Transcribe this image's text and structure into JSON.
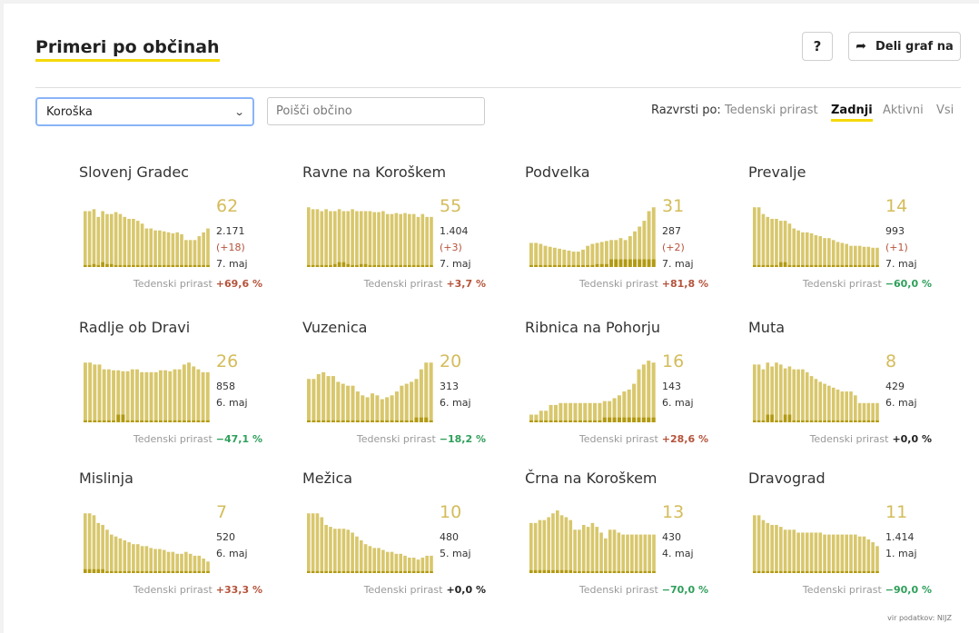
{
  "header": {
    "title": "Primeri po občinah",
    "help_label": "?",
    "share_label": "Deli graf na",
    "share_icon": "share-arrow-icon"
  },
  "filters": {
    "region": "Koroška",
    "search_placeholder": "Poišči občino"
  },
  "sort": {
    "label": "Razvrsti po:",
    "options": [
      "Tedenski prirast",
      "Zadnji",
      "Aktivni",
      "Vsi"
    ],
    "active": "Zadnji"
  },
  "colors": {
    "bar": "#d8c76c",
    "bar_dark": "#b29a12",
    "accent": "#f5d90a",
    "up": "#b5533b",
    "down": "#2e9f5a",
    "zero": "#222222"
  },
  "weekly_label": "Tedenski prirast",
  "source": "vir podatkov: NIJZ",
  "chart_data": [
    {
      "type": "bar",
      "name": "Slovenj Gradec",
      "active": "62",
      "total": "2.171",
      "diff": "(+18)",
      "date": "7. maj",
      "weekly": "+69,6 %",
      "trend": "up",
      "values": [
        58,
        58,
        60,
        52,
        58,
        55,
        55,
        57,
        55,
        52,
        50,
        50,
        48,
        45,
        40,
        40,
        38,
        38,
        37,
        36,
        35,
        36,
        34,
        28,
        28,
        28,
        32,
        36,
        40
      ],
      "dark": [
        2,
        2,
        3,
        2,
        5,
        3,
        3,
        2,
        2,
        2,
        2,
        2,
        2,
        2,
        2,
        2,
        2,
        2,
        2,
        2,
        2,
        2,
        2,
        2,
        2,
        2,
        2,
        2,
        2
      ]
    },
    {
      "type": "bar",
      "name": "Ravne na Koroškem",
      "active": "55",
      "total": "1.404",
      "diff": "(+3)",
      "date": "7. maj",
      "weekly": "+3,7 %",
      "trend": "up",
      "values": [
        62,
        60,
        60,
        58,
        60,
        58,
        58,
        60,
        58,
        58,
        60,
        58,
        58,
        58,
        58,
        57,
        57,
        58,
        55,
        55,
        56,
        55,
        56,
        55,
        55,
        52,
        55,
        52,
        52
      ],
      "dark": [
        2,
        2,
        2,
        2,
        2,
        2,
        3,
        5,
        5,
        3,
        2,
        2,
        3,
        3,
        2,
        2,
        2,
        2,
        2,
        2,
        2,
        2,
        2,
        2,
        2,
        2,
        2,
        2,
        2
      ]
    },
    {
      "type": "bar",
      "name": "Podvelka",
      "active": "31",
      "total": "287",
      "diff": "(+2)",
      "date": "7. maj",
      "weekly": "+81,8 %",
      "trend": "up",
      "values": [
        25,
        25,
        24,
        22,
        21,
        20,
        19,
        18,
        17,
        16,
        16,
        18,
        22,
        24,
        25,
        26,
        27,
        28,
        28,
        30,
        28,
        32,
        37,
        42,
        48,
        58,
        62
      ],
      "dark": [
        2,
        2,
        2,
        2,
        2,
        2,
        2,
        2,
        2,
        2,
        2,
        2,
        2,
        2,
        3,
        3,
        3,
        8,
        8,
        8,
        8,
        8,
        8,
        8,
        8,
        8,
        8
      ]
    },
    {
      "type": "bar",
      "name": "Prevalje",
      "active": "14",
      "total": "993",
      "diff": "(+1)",
      "date": "7. maj",
      "weekly": "−60,0 %",
      "trend": "down",
      "values": [
        62,
        62,
        55,
        52,
        50,
        50,
        48,
        48,
        45,
        40,
        38,
        36,
        36,
        35,
        33,
        32,
        30,
        30,
        28,
        26,
        25,
        24,
        22,
        22,
        22,
        21,
        21,
        20,
        20
      ],
      "dark": [
        2,
        2,
        2,
        2,
        2,
        2,
        5,
        5,
        2,
        2,
        2,
        2,
        2,
        2,
        2,
        2,
        2,
        2,
        2,
        2,
        2,
        2,
        2,
        2,
        2,
        2,
        2,
        2,
        2
      ]
    },
    {
      "type": "bar",
      "name": "Radlje ob Dravi",
      "active": "26",
      "total": "858",
      "diff": "",
      "date": "6. maj",
      "weekly": "−47,1 %",
      "trend": "down",
      "values": [
        62,
        62,
        60,
        60,
        55,
        55,
        54,
        54,
        53,
        53,
        55,
        55,
        52,
        52,
        52,
        52,
        54,
        54,
        53,
        55,
        55,
        60,
        62,
        58,
        55,
        52,
        52
      ],
      "dark": [
        2,
        2,
        2,
        2,
        2,
        2,
        2,
        8,
        8,
        2,
        2,
        2,
        2,
        2,
        2,
        2,
        2,
        2,
        2,
        2,
        2,
        2,
        2,
        2,
        2,
        2,
        2
      ]
    },
    {
      "type": "bar",
      "name": "Vuzenica",
      "active": "20",
      "total": "313",
      "diff": "",
      "date": "6. maj",
      "weekly": "−18,2 %",
      "trend": "down",
      "values": [
        45,
        45,
        50,
        52,
        48,
        48,
        42,
        40,
        38,
        38,
        32,
        28,
        26,
        30,
        28,
        24,
        26,
        28,
        32,
        38,
        40,
        42,
        45,
        55,
        62,
        62
      ],
      "dark": [
        2,
        2,
        2,
        2,
        2,
        2,
        2,
        2,
        2,
        2,
        2,
        2,
        2,
        2,
        2,
        2,
        2,
        2,
        2,
        2,
        2,
        2,
        5,
        5,
        5,
        2
      ]
    },
    {
      "type": "bar",
      "name": "Ribnica na Pohorju",
      "active": "16",
      "total": "143",
      "diff": "",
      "date": "6. maj",
      "weekly": "+28,6 %",
      "trend": "up",
      "values": [
        8,
        8,
        12,
        12,
        18,
        18,
        20,
        20,
        20,
        20,
        20,
        20,
        20,
        20,
        20,
        22,
        22,
        25,
        28,
        32,
        34,
        40,
        55,
        60,
        64,
        62
      ],
      "dark": [
        2,
        2,
        2,
        2,
        2,
        2,
        2,
        2,
        2,
        2,
        2,
        2,
        2,
        2,
        2,
        5,
        5,
        5,
        5,
        5,
        5,
        5,
        5,
        5,
        5,
        5
      ]
    },
    {
      "type": "bar",
      "name": "Muta",
      "active": "8",
      "total": "429",
      "diff": "",
      "date": "6. maj",
      "weekly": "+0,0 %",
      "trend": "zero",
      "values": [
        60,
        60,
        55,
        62,
        58,
        62,
        60,
        56,
        58,
        55,
        55,
        55,
        52,
        48,
        45,
        42,
        40,
        38,
        36,
        34,
        32,
        32,
        32,
        28,
        20,
        20,
        20,
        20,
        20
      ],
      "dark": [
        2,
        2,
        2,
        8,
        8,
        2,
        2,
        8,
        8,
        2,
        2,
        2,
        2,
        2,
        2,
        2,
        2,
        2,
        2,
        2,
        2,
        2,
        2,
        2,
        2,
        2,
        2,
        2,
        2
      ]
    },
    {
      "type": "bar",
      "name": "Mislinja",
      "active": "7",
      "total": "520",
      "diff": "",
      "date": "6. maj",
      "weekly": "+33,3 %",
      "trend": "up",
      "values": [
        62,
        62,
        60,
        52,
        50,
        45,
        40,
        38,
        36,
        34,
        32,
        30,
        30,
        28,
        28,
        26,
        25,
        25,
        24,
        22,
        22,
        20,
        20,
        22,
        20,
        18,
        18,
        15,
        12
      ],
      "dark": [
        4,
        4,
        4,
        4,
        4,
        2,
        2,
        2,
        2,
        2,
        2,
        2,
        2,
        2,
        2,
        2,
        2,
        2,
        2,
        2,
        2,
        2,
        2,
        2,
        2,
        2,
        2,
        2,
        2
      ]
    },
    {
      "type": "bar",
      "name": "Mežica",
      "active": "10",
      "total": "480",
      "diff": "",
      "date": "5. maj",
      "weekly": "+0,0 %",
      "trend": "zero",
      "values": [
        62,
        62,
        62,
        58,
        50,
        48,
        46,
        46,
        46,
        45,
        42,
        38,
        34,
        30,
        28,
        26,
        26,
        24,
        22,
        22,
        20,
        20,
        18,
        16,
        16,
        14,
        16,
        18,
        18
      ],
      "dark": [
        2,
        2,
        2,
        2,
        2,
        2,
        2,
        2,
        2,
        2,
        2,
        2,
        2,
        2,
        2,
        2,
        2,
        2,
        2,
        2,
        2,
        2,
        2,
        2,
        2,
        2,
        2,
        2,
        2
      ]
    },
    {
      "type": "bar",
      "name": "Črna na Koroškem",
      "active": "13",
      "total": "430",
      "diff": "",
      "date": "4. maj",
      "weekly": "−70,0 %",
      "trend": "down",
      "values": [
        52,
        52,
        55,
        55,
        58,
        62,
        65,
        60,
        58,
        55,
        45,
        45,
        50,
        48,
        52,
        48,
        42,
        36,
        45,
        45,
        42,
        40,
        40,
        40,
        40,
        40,
        40,
        40,
        40
      ],
      "dark": [
        3,
        3,
        3,
        3,
        3,
        3,
        3,
        3,
        3,
        3,
        2,
        2,
        2,
        2,
        2,
        2,
        2,
        2,
        2,
        2,
        2,
        2,
        2,
        2,
        2,
        2,
        2,
        2,
        2
      ]
    },
    {
      "type": "bar",
      "name": "Dravograd",
      "active": "11",
      "total": "1.414",
      "diff": "",
      "date": "1. maj",
      "weekly": "−90,0 %",
      "trend": "down",
      "values": [
        60,
        60,
        55,
        52,
        50,
        50,
        48,
        45,
        45,
        45,
        42,
        42,
        42,
        42,
        42,
        42,
        40,
        40,
        40,
        40,
        40,
        40,
        40,
        40,
        38,
        38,
        35,
        32,
        28
      ],
      "dark": [
        2,
        2,
        2,
        2,
        2,
        2,
        2,
        2,
        2,
        2,
        2,
        2,
        2,
        2,
        2,
        2,
        2,
        2,
        2,
        2,
        2,
        2,
        2,
        2,
        2,
        2,
        2,
        2,
        2
      ]
    }
  ]
}
